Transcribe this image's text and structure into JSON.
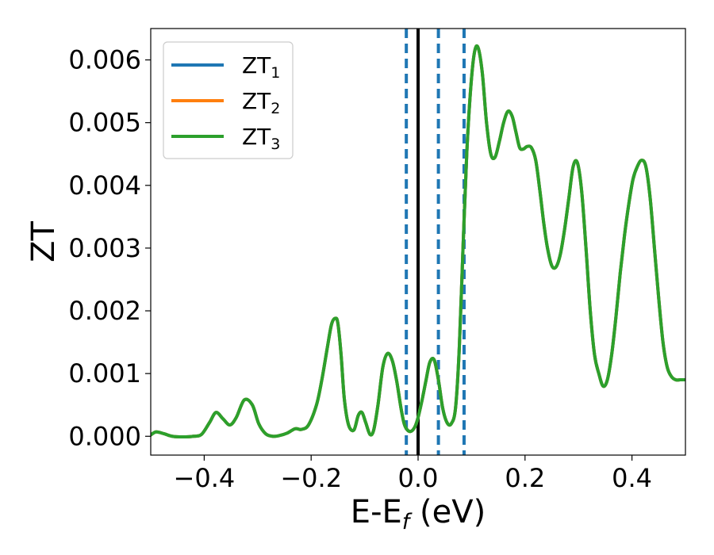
{
  "chart_data": {
    "type": "line",
    "title": "",
    "xlabel": "E-E",
    "xlabel_sub": "f",
    "xlabel_suffix": " (eV)",
    "ylabel": "ZT",
    "xlim": [
      -0.5,
      0.5
    ],
    "ylim": [
      -0.0003,
      0.0065
    ],
    "xticks": [
      -0.4,
      -0.2,
      0.0,
      0.2,
      0.4
    ],
    "xtick_labels": [
      "−0.4",
      "−0.2",
      "0.0",
      "0.2",
      "0.4"
    ],
    "yticks": [
      0.0,
      0.001,
      0.002,
      0.003,
      0.004,
      0.005,
      0.006
    ],
    "ytick_labels": [
      "0.000",
      "0.001",
      "0.002",
      "0.003",
      "0.004",
      "0.005",
      "0.006"
    ],
    "grid": false,
    "legend_position": "top-left",
    "series": [
      {
        "name": "ZT",
        "name_sub": "1",
        "color": "#1f77b4",
        "x": [
          -0.5,
          -0.49,
          -0.475,
          -0.46,
          -0.44,
          -0.42,
          -0.405,
          -0.39,
          -0.378,
          -0.365,
          -0.352,
          -0.34,
          -0.325,
          -0.31,
          -0.298,
          -0.285,
          -0.272,
          -0.26,
          -0.245,
          -0.23,
          -0.218,
          -0.205,
          -0.19,
          -0.18,
          -0.17,
          -0.162,
          -0.155,
          -0.15,
          -0.144,
          -0.138,
          -0.13,
          -0.12,
          -0.112,
          -0.105,
          -0.098,
          -0.09,
          -0.083,
          -0.075,
          -0.066,
          -0.057,
          -0.048,
          -0.04,
          -0.032,
          -0.026,
          -0.02,
          -0.013,
          -0.006,
          0.0,
          0.008,
          0.015,
          0.022,
          0.03,
          0.038,
          0.046,
          0.054,
          0.062,
          0.07,
          0.077,
          0.084,
          0.091,
          0.098,
          0.105,
          0.112,
          0.12,
          0.128,
          0.136,
          0.144,
          0.152,
          0.16,
          0.168,
          0.176,
          0.183,
          0.19,
          0.197,
          0.204,
          0.212,
          0.22,
          0.228,
          0.235,
          0.242,
          0.25,
          0.258,
          0.266,
          0.274,
          0.282,
          0.29,
          0.298,
          0.306,
          0.314,
          0.322,
          0.33,
          0.338,
          0.346,
          0.354,
          0.362,
          0.37,
          0.378,
          0.386,
          0.394,
          0.402,
          0.41,
          0.418,
          0.426,
          0.434,
          0.442,
          0.45,
          0.458,
          0.466,
          0.474,
          0.482,
          0.49,
          0.5
        ],
        "y": [
          2e-05,
          7e-05,
          4e-05,
          0.0,
          -1e-05,
          0.0,
          3e-05,
          0.00022,
          0.00038,
          0.00028,
          0.00018,
          0.0003,
          0.00058,
          0.0005,
          0.0002,
          4e-05,
          0.0,
          1e-05,
          5e-05,
          0.00012,
          0.00011,
          0.00018,
          0.0005,
          0.0009,
          0.0014,
          0.00178,
          0.00188,
          0.0018,
          0.0013,
          0.0006,
          0.00018,
          0.0001,
          0.00033,
          0.00038,
          0.00022,
          3e-05,
          0.0001,
          0.0005,
          0.0011,
          0.00132,
          0.0012,
          0.00088,
          0.00045,
          0.0002,
          0.0001,
          8e-05,
          0.00015,
          0.0003,
          0.0006,
          0.0009,
          0.00118,
          0.00122,
          0.0009,
          0.00045,
          0.00022,
          0.0002,
          0.00045,
          0.0014,
          0.003,
          0.0045,
          0.0055,
          0.0061,
          0.0062,
          0.0058,
          0.005,
          0.0045,
          0.00445,
          0.0047,
          0.005,
          0.00518,
          0.0051,
          0.00485,
          0.0046,
          0.00458,
          0.00462,
          0.0046,
          0.0044,
          0.0039,
          0.0034,
          0.003,
          0.00272,
          0.0027,
          0.0029,
          0.0033,
          0.0038,
          0.0043,
          0.00436,
          0.0039,
          0.003,
          0.002,
          0.0013,
          0.001,
          0.0008,
          0.0009,
          0.0013,
          0.0019,
          0.0026,
          0.0032,
          0.0037,
          0.0041,
          0.0043,
          0.0044,
          0.0043,
          0.0038,
          0.003,
          0.0022,
          0.0015,
          0.0011,
          0.00095,
          0.0009,
          0.0009,
          0.0009
        ]
      },
      {
        "name": "ZT",
        "name_sub": "2",
        "color": "#ff7f0e",
        "x": [
          -0.5,
          -0.49,
          -0.475,
          -0.46,
          -0.44,
          -0.42,
          -0.405,
          -0.39,
          -0.378,
          -0.365,
          -0.352,
          -0.34,
          -0.325,
          -0.31,
          -0.298,
          -0.285,
          -0.272,
          -0.26,
          -0.245,
          -0.23,
          -0.218,
          -0.205,
          -0.19,
          -0.18,
          -0.17,
          -0.162,
          -0.155,
          -0.15,
          -0.144,
          -0.138,
          -0.13,
          -0.12,
          -0.112,
          -0.105,
          -0.098,
          -0.09,
          -0.083,
          -0.075,
          -0.066,
          -0.057,
          -0.048,
          -0.04,
          -0.032,
          -0.026,
          -0.02,
          -0.013,
          -0.006,
          0.0,
          0.008,
          0.015,
          0.022,
          0.03,
          0.038,
          0.046,
          0.054,
          0.062,
          0.07,
          0.077,
          0.084,
          0.091,
          0.098,
          0.105,
          0.112,
          0.12,
          0.128,
          0.136,
          0.144,
          0.152,
          0.16,
          0.168,
          0.176,
          0.183,
          0.19,
          0.197,
          0.204,
          0.212,
          0.22,
          0.228,
          0.235,
          0.242,
          0.25,
          0.258,
          0.266,
          0.274,
          0.282,
          0.29,
          0.298,
          0.306,
          0.314,
          0.322,
          0.33,
          0.338,
          0.346,
          0.354,
          0.362,
          0.37,
          0.378,
          0.386,
          0.394,
          0.402,
          0.41,
          0.418,
          0.426,
          0.434,
          0.442,
          0.45,
          0.458,
          0.466,
          0.474,
          0.482,
          0.49,
          0.5
        ],
        "y": [
          2e-05,
          7e-05,
          4e-05,
          0.0,
          -1e-05,
          0.0,
          3e-05,
          0.00022,
          0.00038,
          0.00028,
          0.00018,
          0.0003,
          0.00058,
          0.0005,
          0.0002,
          4e-05,
          0.0,
          1e-05,
          5e-05,
          0.00012,
          0.00011,
          0.00018,
          0.0005,
          0.0009,
          0.0014,
          0.00178,
          0.00188,
          0.0018,
          0.0013,
          0.0006,
          0.00018,
          0.0001,
          0.00033,
          0.00038,
          0.00022,
          3e-05,
          0.0001,
          0.0005,
          0.0011,
          0.00132,
          0.0012,
          0.00088,
          0.00045,
          0.0002,
          0.0001,
          8e-05,
          0.00015,
          0.0003,
          0.0006,
          0.0009,
          0.00118,
          0.00122,
          0.0009,
          0.00045,
          0.00022,
          0.0002,
          0.00045,
          0.0014,
          0.003,
          0.0045,
          0.0055,
          0.0061,
          0.0062,
          0.0058,
          0.005,
          0.0045,
          0.00445,
          0.0047,
          0.005,
          0.00518,
          0.0051,
          0.00485,
          0.0046,
          0.00458,
          0.00462,
          0.0046,
          0.0044,
          0.0039,
          0.0034,
          0.003,
          0.00272,
          0.0027,
          0.0029,
          0.0033,
          0.0038,
          0.0043,
          0.00436,
          0.0039,
          0.003,
          0.002,
          0.0013,
          0.001,
          0.0008,
          0.0009,
          0.0013,
          0.0019,
          0.0026,
          0.0032,
          0.0037,
          0.0041,
          0.0043,
          0.0044,
          0.0043,
          0.0038,
          0.003,
          0.0022,
          0.0015,
          0.0011,
          0.00095,
          0.0009,
          0.0009,
          0.0009
        ]
      },
      {
        "name": "ZT",
        "name_sub": "3",
        "color": "#2ca02c",
        "x": [
          -0.5,
          -0.49,
          -0.475,
          -0.46,
          -0.44,
          -0.42,
          -0.405,
          -0.39,
          -0.378,
          -0.365,
          -0.352,
          -0.34,
          -0.325,
          -0.31,
          -0.298,
          -0.285,
          -0.272,
          -0.26,
          -0.245,
          -0.23,
          -0.218,
          -0.205,
          -0.19,
          -0.18,
          -0.17,
          -0.162,
          -0.155,
          -0.15,
          -0.144,
          -0.138,
          -0.13,
          -0.12,
          -0.112,
          -0.105,
          -0.098,
          -0.09,
          -0.083,
          -0.075,
          -0.066,
          -0.057,
          -0.048,
          -0.04,
          -0.032,
          -0.026,
          -0.02,
          -0.013,
          -0.006,
          0.0,
          0.008,
          0.015,
          0.022,
          0.03,
          0.038,
          0.046,
          0.054,
          0.062,
          0.07,
          0.077,
          0.084,
          0.091,
          0.098,
          0.105,
          0.112,
          0.12,
          0.128,
          0.136,
          0.144,
          0.152,
          0.16,
          0.168,
          0.176,
          0.183,
          0.19,
          0.197,
          0.204,
          0.212,
          0.22,
          0.228,
          0.235,
          0.242,
          0.25,
          0.258,
          0.266,
          0.274,
          0.282,
          0.29,
          0.298,
          0.306,
          0.314,
          0.322,
          0.33,
          0.338,
          0.346,
          0.354,
          0.362,
          0.37,
          0.378,
          0.386,
          0.394,
          0.402,
          0.41,
          0.418,
          0.426,
          0.434,
          0.442,
          0.45,
          0.458,
          0.466,
          0.474,
          0.482,
          0.49,
          0.5
        ],
        "y": [
          2e-05,
          7e-05,
          4e-05,
          0.0,
          -1e-05,
          0.0,
          3e-05,
          0.00022,
          0.00038,
          0.00028,
          0.00018,
          0.0003,
          0.00058,
          0.0005,
          0.0002,
          4e-05,
          0.0,
          1e-05,
          5e-05,
          0.00012,
          0.00011,
          0.00018,
          0.0005,
          0.0009,
          0.0014,
          0.00178,
          0.00188,
          0.0018,
          0.0013,
          0.0006,
          0.00018,
          0.0001,
          0.00033,
          0.00038,
          0.00022,
          3e-05,
          0.0001,
          0.0005,
          0.0011,
          0.00132,
          0.0012,
          0.00088,
          0.00045,
          0.0002,
          0.0001,
          8e-05,
          0.00015,
          0.0003,
          0.0006,
          0.0009,
          0.00118,
          0.00122,
          0.0009,
          0.00045,
          0.00022,
          0.0002,
          0.00045,
          0.0014,
          0.003,
          0.0045,
          0.0055,
          0.0061,
          0.0062,
          0.0058,
          0.005,
          0.0045,
          0.00445,
          0.0047,
          0.005,
          0.00518,
          0.0051,
          0.00485,
          0.0046,
          0.00458,
          0.00462,
          0.0046,
          0.0044,
          0.0039,
          0.0034,
          0.003,
          0.00272,
          0.0027,
          0.0029,
          0.0033,
          0.0038,
          0.0043,
          0.00436,
          0.0039,
          0.003,
          0.002,
          0.0013,
          0.001,
          0.0008,
          0.0009,
          0.0013,
          0.0019,
          0.0026,
          0.0032,
          0.0037,
          0.0041,
          0.0043,
          0.0044,
          0.0043,
          0.0038,
          0.003,
          0.0022,
          0.0015,
          0.0011,
          0.00095,
          0.0009,
          0.0009,
          0.0009
        ]
      }
    ],
    "vlines": [
      {
        "x": 0.0,
        "style": "solid",
        "color": "#000000"
      },
      {
        "x": -0.022,
        "style": "dashed",
        "color": "#1f77b4"
      },
      {
        "x": 0.038,
        "style": "dashed",
        "color": "#1f77b4"
      },
      {
        "x": 0.086,
        "style": "dashed",
        "color": "#1f77b4"
      }
    ]
  }
}
